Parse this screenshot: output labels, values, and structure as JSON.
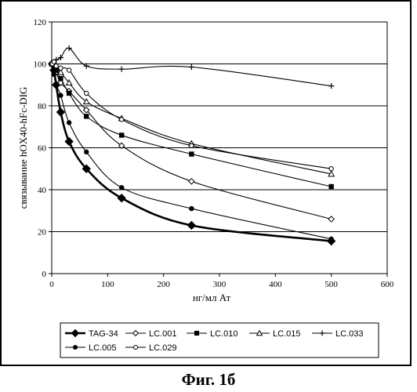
{
  "figure_caption": "Фиг. 1б",
  "chart_data": {
    "type": "line",
    "xlabel": "нг/мл Ат",
    "ylabel": "связывание hOX40-hFc-DIG",
    "xlim": [
      0,
      600
    ],
    "ylim": [
      0,
      120
    ],
    "x_ticks": [
      0,
      100,
      200,
      300,
      400,
      500,
      600
    ],
    "y_ticks": [
      0,
      20,
      40,
      60,
      80,
      100,
      120
    ],
    "x_tick_labels": [
      "0",
      "100",
      "200",
      "300",
      "400",
      "500",
      "600"
    ],
    "y_tick_labels": [
      "0",
      "20",
      "40",
      "60",
      "80",
      "100",
      "120"
    ],
    "grid": "horizontal",
    "legend_placement": "bottom",
    "series": [
      {
        "name": "TAG-34",
        "marker": "diamond-filled",
        "color": "#000000",
        "points": [
          [
            1,
            100
          ],
          [
            4,
            97
          ],
          [
            8,
            90
          ],
          [
            16,
            77
          ],
          [
            31,
            63
          ],
          [
            62,
            50
          ],
          [
            125,
            36
          ],
          [
            250,
            23
          ],
          [
            500,
            15.5
          ]
        ]
      },
      {
        "name": "LC.001",
        "marker": "diamond-open",
        "color": "#000000",
        "points": [
          [
            1,
            100
          ],
          [
            4,
            99
          ],
          [
            8,
            96
          ],
          [
            16,
            91
          ],
          [
            31,
            87
          ],
          [
            62,
            78
          ],
          [
            125,
            61
          ],
          [
            250,
            44
          ],
          [
            500,
            26
          ]
        ]
      },
      {
        "name": "LC.010",
        "marker": "square-filled",
        "color": "#000000",
        "points": [
          [
            1,
            100
          ],
          [
            4,
            99
          ],
          [
            8,
            97
          ],
          [
            16,
            93
          ],
          [
            31,
            86
          ],
          [
            62,
            75
          ],
          [
            125,
            66
          ],
          [
            250,
            57
          ],
          [
            500,
            41.5
          ]
        ]
      },
      {
        "name": "LC.015",
        "marker": "triangle-open",
        "color": "#000000",
        "points": [
          [
            1,
            100
          ],
          [
            4,
            100
          ],
          [
            8,
            99
          ],
          [
            16,
            96
          ],
          [
            31,
            91
          ],
          [
            62,
            82
          ],
          [
            125,
            74
          ],
          [
            250,
            62
          ],
          [
            500,
            47.5
          ]
        ]
      },
      {
        "name": "LC.033",
        "marker": "plus",
        "color": "#000000",
        "points": [
          [
            1,
            100
          ],
          [
            4,
            101
          ],
          [
            8,
            102
          ],
          [
            16,
            103
          ],
          [
            31,
            107.5
          ],
          [
            62,
            99
          ],
          [
            125,
            97.5
          ],
          [
            250,
            98.5
          ],
          [
            500,
            89.5
          ]
        ]
      },
      {
        "name": "LC.005",
        "marker": "circle-filled",
        "color": "#000000",
        "points": [
          [
            1,
            100
          ],
          [
            4,
            95
          ],
          [
            8,
            90
          ],
          [
            16,
            85
          ],
          [
            31,
            72
          ],
          [
            62,
            58
          ],
          [
            125,
            41
          ],
          [
            250,
            31
          ],
          [
            500,
            16.5
          ]
        ]
      },
      {
        "name": "LC.029",
        "marker": "circle-open",
        "color": "#000000",
        "points": [
          [
            1,
            100
          ],
          [
            4,
            101
          ],
          [
            8,
            99
          ],
          [
            16,
            98
          ],
          [
            31,
            97
          ],
          [
            62,
            86
          ],
          [
            125,
            73.5
          ],
          [
            250,
            61
          ],
          [
            500,
            50
          ]
        ]
      }
    ]
  }
}
